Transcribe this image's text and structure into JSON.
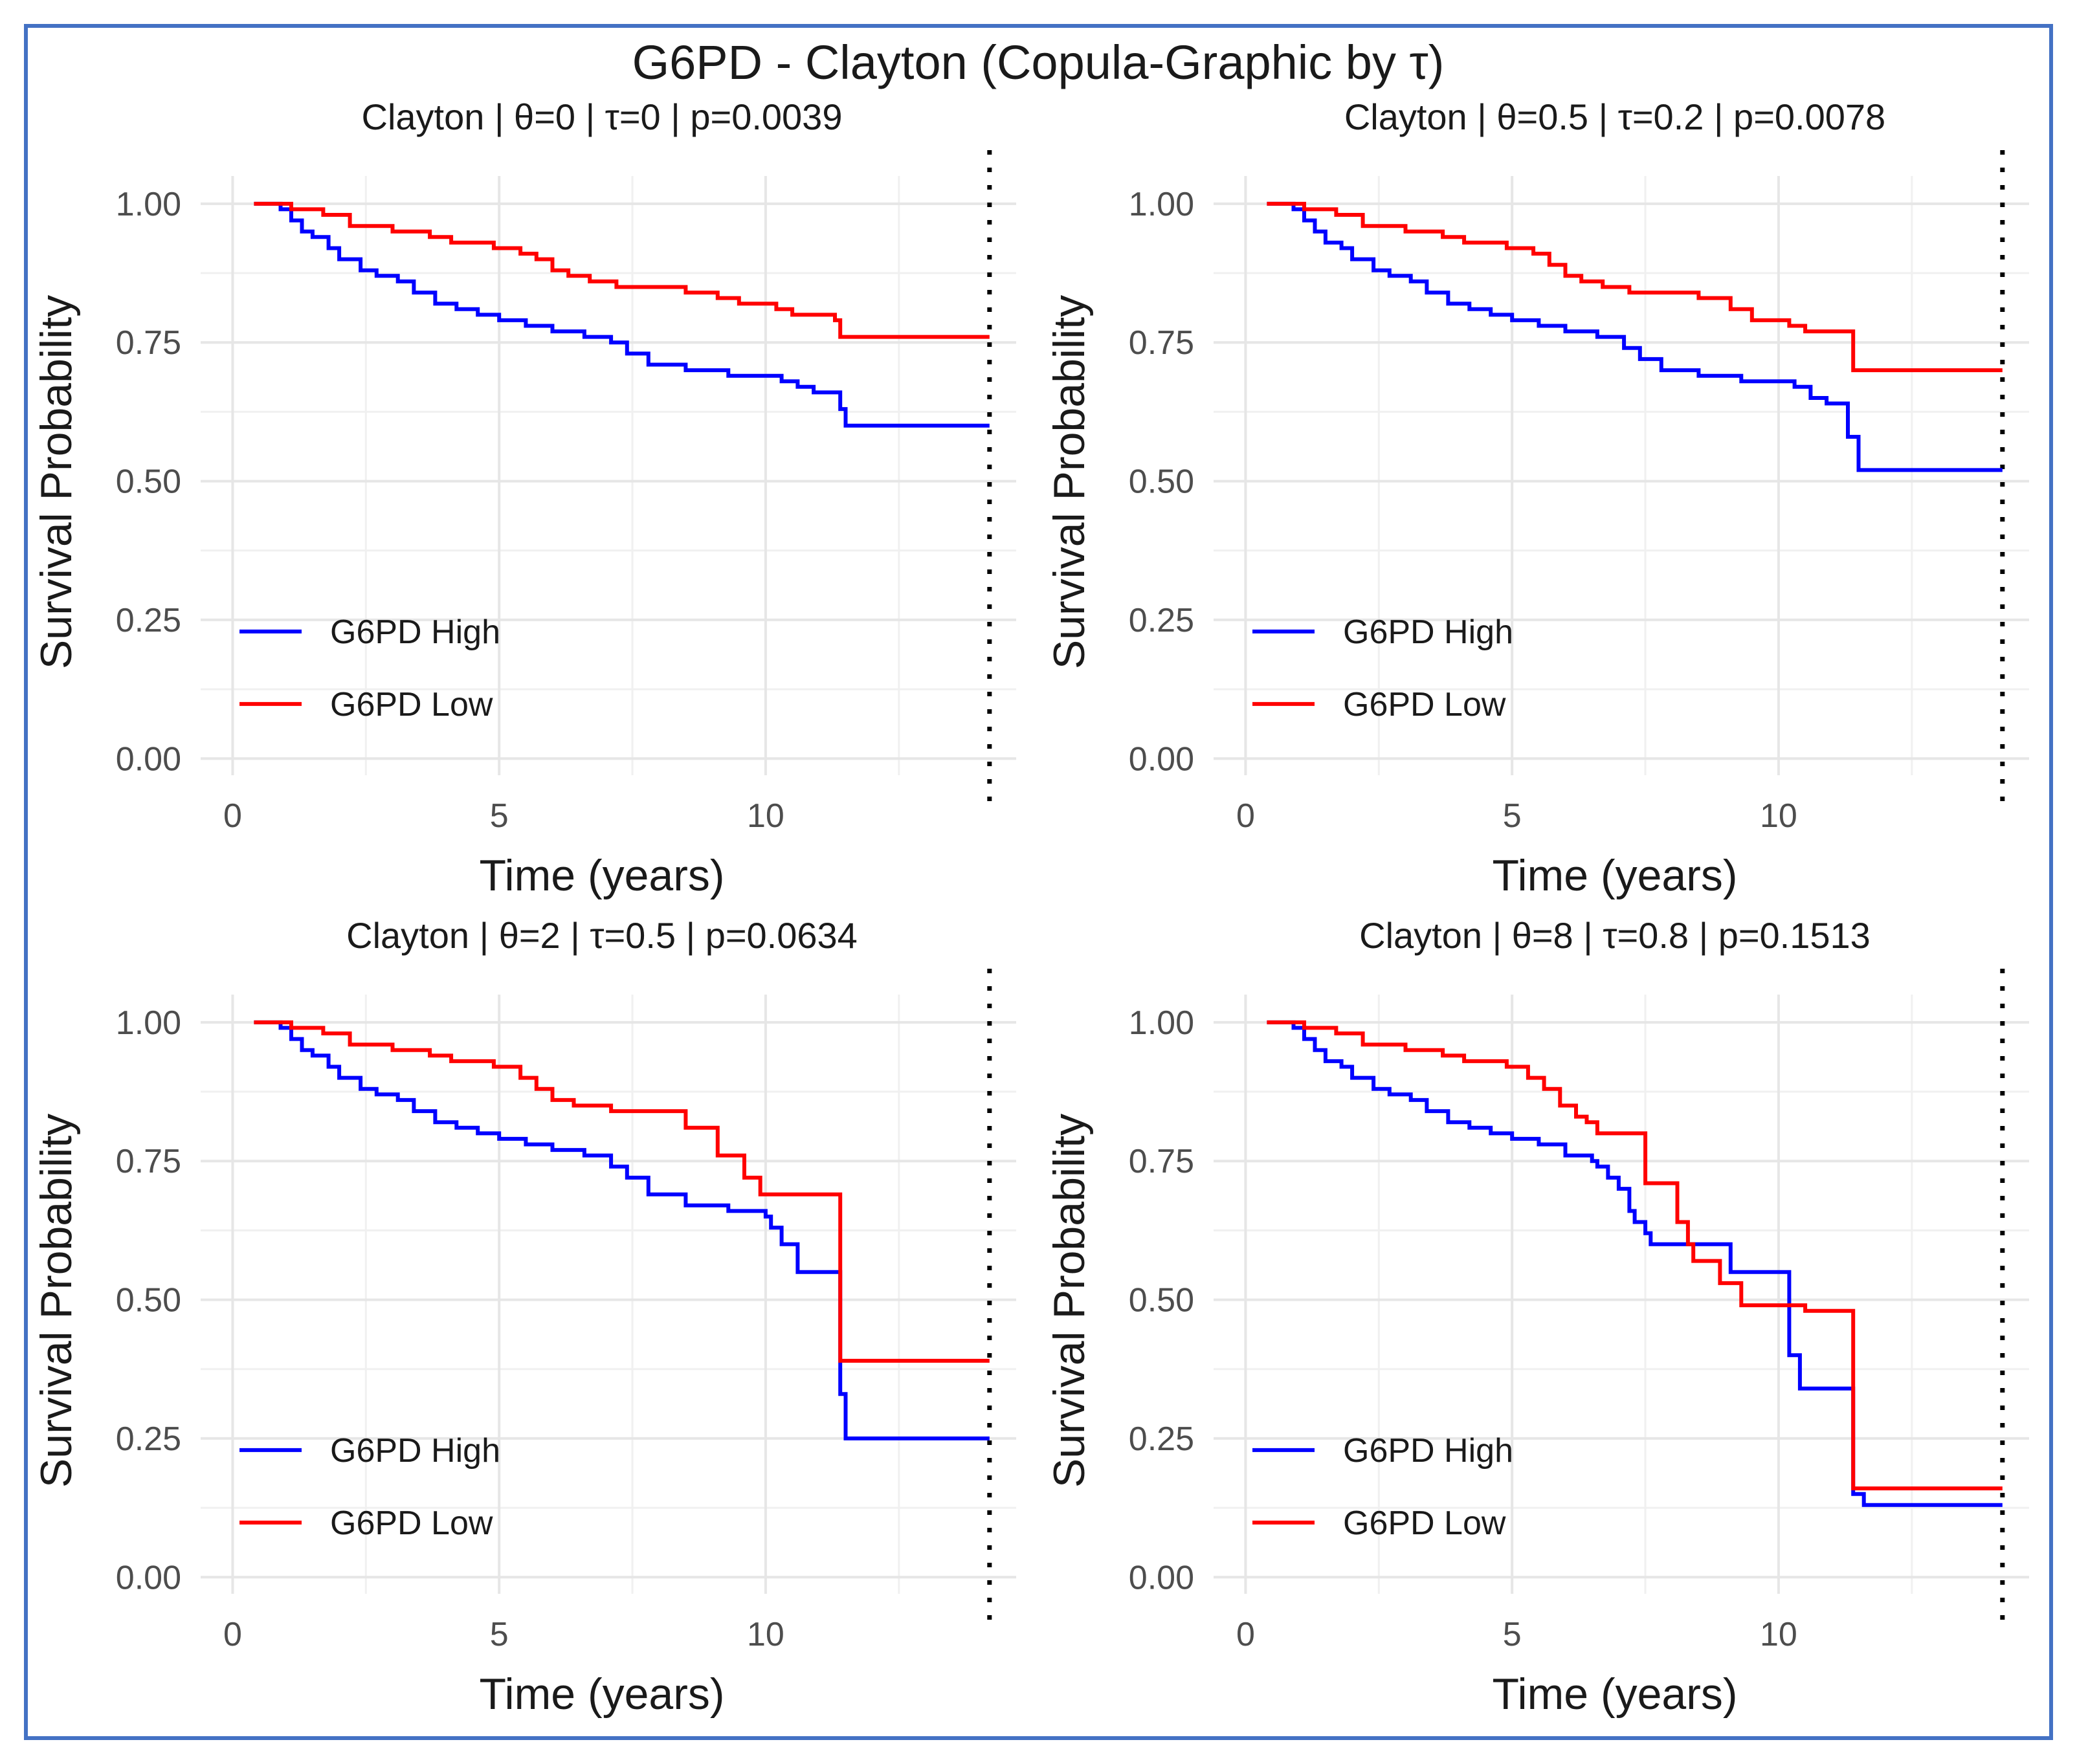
{
  "figure": {
    "title": "G6PD - Clayton (Copula-Graphic by τ)",
    "frame_color": "#4472C4"
  },
  "chart_data": [
    {
      "type": "line",
      "step": true,
      "title": "Clayton | θ=0 | τ=0 | p=0.0039",
      "xlabel": "Time (years)",
      "ylabel": "Survival Probability",
      "xlim": [
        -0.6,
        14.7
      ],
      "ylim": [
        -0.03,
        1.05
      ],
      "xticks": [
        0,
        5,
        10
      ],
      "xtick_labels": [
        "0",
        "5",
        "10"
      ],
      "yticks": [
        0,
        0.25,
        0.5,
        0.75,
        1.0
      ],
      "ytick_labels": [
        "0.00",
        "0.25",
        "0.50",
        "0.75",
        "1.00"
      ],
      "grid": true,
      "legend_position": "bottom-left",
      "vline_x": 14.2,
      "series": [
        {
          "name": "G6PD High",
          "color": "#0000FF",
          "points": [
            [
              0.4,
              1.0
            ],
            [
              0.9,
              0.99
            ],
            [
              1.1,
              0.97
            ],
            [
              1.3,
              0.95
            ],
            [
              1.5,
              0.94
            ],
            [
              1.8,
              0.92
            ],
            [
              2.0,
              0.9
            ],
            [
              2.4,
              0.88
            ],
            [
              2.7,
              0.87
            ],
            [
              3.1,
              0.86
            ],
            [
              3.4,
              0.84
            ],
            [
              3.8,
              0.82
            ],
            [
              4.2,
              0.81
            ],
            [
              4.6,
              0.8
            ],
            [
              5.0,
              0.79
            ],
            [
              5.5,
              0.78
            ],
            [
              6.0,
              0.77
            ],
            [
              6.6,
              0.76
            ],
            [
              7.1,
              0.75
            ],
            [
              7.4,
              0.73
            ],
            [
              7.8,
              0.71
            ],
            [
              8.5,
              0.7
            ],
            [
              9.3,
              0.69
            ],
            [
              10.3,
              0.68
            ],
            [
              10.6,
              0.67
            ],
            [
              10.9,
              0.66
            ],
            [
              11.4,
              0.63
            ],
            [
              11.5,
              0.6
            ],
            [
              14.2,
              0.6
            ]
          ]
        },
        {
          "name": "G6PD Low",
          "color": "#FF0000",
          "points": [
            [
              0.4,
              1.0
            ],
            [
              1.1,
              0.99
            ],
            [
              1.7,
              0.98
            ],
            [
              2.2,
              0.96
            ],
            [
              3.0,
              0.95
            ],
            [
              3.7,
              0.94
            ],
            [
              4.1,
              0.93
            ],
            [
              4.9,
              0.92
            ],
            [
              5.4,
              0.91
            ],
            [
              5.7,
              0.9
            ],
            [
              6.0,
              0.88
            ],
            [
              6.3,
              0.87
            ],
            [
              6.7,
              0.86
            ],
            [
              7.2,
              0.85
            ],
            [
              8.5,
              0.84
            ],
            [
              9.1,
              0.83
            ],
            [
              9.5,
              0.82
            ],
            [
              10.2,
              0.81
            ],
            [
              10.5,
              0.8
            ],
            [
              11.3,
              0.79
            ],
            [
              11.4,
              0.76
            ],
            [
              14.2,
              0.76
            ]
          ]
        }
      ]
    },
    {
      "type": "line",
      "step": true,
      "title": "Clayton | θ=0.5 | τ=0.2 | p=0.0078",
      "xlabel": "Time (years)",
      "ylabel": "Survival Probability",
      "xlim": [
        -0.6,
        14.7
      ],
      "ylim": [
        -0.03,
        1.05
      ],
      "xticks": [
        0,
        5,
        10
      ],
      "xtick_labels": [
        "0",
        "5",
        "10"
      ],
      "yticks": [
        0,
        0.25,
        0.5,
        0.75,
        1.0
      ],
      "ytick_labels": [
        "0.00",
        "0.25",
        "0.50",
        "0.75",
        "1.00"
      ],
      "grid": true,
      "legend_position": "bottom-left",
      "vline_x": 14.2,
      "series": [
        {
          "name": "G6PD High",
          "color": "#0000FF",
          "points": [
            [
              0.4,
              1.0
            ],
            [
              0.9,
              0.99
            ],
            [
              1.1,
              0.97
            ],
            [
              1.3,
              0.95
            ],
            [
              1.5,
              0.93
            ],
            [
              1.8,
              0.92
            ],
            [
              2.0,
              0.9
            ],
            [
              2.4,
              0.88
            ],
            [
              2.7,
              0.87
            ],
            [
              3.1,
              0.86
            ],
            [
              3.4,
              0.84
            ],
            [
              3.8,
              0.82
            ],
            [
              4.2,
              0.81
            ],
            [
              4.6,
              0.8
            ],
            [
              5.0,
              0.79
            ],
            [
              5.5,
              0.78
            ],
            [
              6.0,
              0.77
            ],
            [
              6.6,
              0.76
            ],
            [
              7.1,
              0.74
            ],
            [
              7.4,
              0.72
            ],
            [
              7.8,
              0.7
            ],
            [
              8.5,
              0.69
            ],
            [
              9.3,
              0.68
            ],
            [
              10.3,
              0.67
            ],
            [
              10.6,
              0.65
            ],
            [
              10.9,
              0.64
            ],
            [
              11.1,
              0.64
            ],
            [
              11.3,
              0.58
            ],
            [
              11.5,
              0.52
            ],
            [
              14.2,
              0.52
            ]
          ]
        },
        {
          "name": "G6PD Low",
          "color": "#FF0000",
          "points": [
            [
              0.4,
              1.0
            ],
            [
              1.1,
              0.99
            ],
            [
              1.7,
              0.98
            ],
            [
              2.2,
              0.96
            ],
            [
              3.0,
              0.95
            ],
            [
              3.7,
              0.94
            ],
            [
              4.1,
              0.93
            ],
            [
              4.9,
              0.92
            ],
            [
              5.4,
              0.91
            ],
            [
              5.7,
              0.89
            ],
            [
              6.0,
              0.87
            ],
            [
              6.3,
              0.86
            ],
            [
              6.7,
              0.85
            ],
            [
              7.2,
              0.84
            ],
            [
              8.5,
              0.83
            ],
            [
              9.1,
              0.81
            ],
            [
              9.5,
              0.79
            ],
            [
              10.2,
              0.78
            ],
            [
              10.5,
              0.77
            ],
            [
              11.3,
              0.77
            ],
            [
              11.4,
              0.7
            ],
            [
              14.2,
              0.7
            ]
          ]
        }
      ]
    },
    {
      "type": "line",
      "step": true,
      "title": "Clayton | θ=2 | τ=0.5 | p=0.0634",
      "xlabel": "Time (years)",
      "ylabel": "Survival Probability",
      "xlim": [
        -0.6,
        14.7
      ],
      "ylim": [
        -0.03,
        1.05
      ],
      "xticks": [
        0,
        5,
        10
      ],
      "xtick_labels": [
        "0",
        "5",
        "10"
      ],
      "yticks": [
        0,
        0.25,
        0.5,
        0.75,
        1.0
      ],
      "ytick_labels": [
        "0.00",
        "0.25",
        "0.50",
        "0.75",
        "1.00"
      ],
      "grid": true,
      "legend_position": "bottom-left",
      "vline_x": 14.2,
      "series": [
        {
          "name": "G6PD High",
          "color": "#0000FF",
          "points": [
            [
              0.4,
              1.0
            ],
            [
              0.9,
              0.99
            ],
            [
              1.1,
              0.97
            ],
            [
              1.3,
              0.95
            ],
            [
              1.5,
              0.94
            ],
            [
              1.8,
              0.92
            ],
            [
              2.0,
              0.9
            ],
            [
              2.4,
              0.88
            ],
            [
              2.7,
              0.87
            ],
            [
              3.1,
              0.86
            ],
            [
              3.4,
              0.84
            ],
            [
              3.8,
              0.82
            ],
            [
              4.2,
              0.81
            ],
            [
              4.6,
              0.8
            ],
            [
              5.0,
              0.79
            ],
            [
              5.5,
              0.78
            ],
            [
              6.0,
              0.77
            ],
            [
              6.6,
              0.76
            ],
            [
              7.1,
              0.74
            ],
            [
              7.4,
              0.72
            ],
            [
              7.8,
              0.69
            ],
            [
              8.5,
              0.67
            ],
            [
              9.3,
              0.66
            ],
            [
              10.0,
              0.65
            ],
            [
              10.1,
              0.63
            ],
            [
              10.3,
              0.6
            ],
            [
              10.6,
              0.55
            ],
            [
              11.4,
              0.33
            ],
            [
              11.5,
              0.25
            ],
            [
              14.2,
              0.25
            ]
          ]
        },
        {
          "name": "G6PD Low",
          "color": "#FF0000",
          "points": [
            [
              0.4,
              1.0
            ],
            [
              1.1,
              0.99
            ],
            [
              1.7,
              0.98
            ],
            [
              2.2,
              0.96
            ],
            [
              3.0,
              0.95
            ],
            [
              3.7,
              0.94
            ],
            [
              4.1,
              0.93
            ],
            [
              4.9,
              0.92
            ],
            [
              5.4,
              0.9
            ],
            [
              5.7,
              0.88
            ],
            [
              6.0,
              0.86
            ],
            [
              6.4,
              0.85
            ],
            [
              7.1,
              0.84
            ],
            [
              8.5,
              0.81
            ],
            [
              9.1,
              0.76
            ],
            [
              9.6,
              0.72
            ],
            [
              9.9,
              0.69
            ],
            [
              10.8,
              0.69
            ],
            [
              11.4,
              0.39
            ],
            [
              14.2,
              0.39
            ]
          ]
        }
      ]
    },
    {
      "type": "line",
      "step": true,
      "title": "Clayton | θ=8 | τ=0.8 | p=0.1513",
      "xlabel": "Time (years)",
      "ylabel": "Survival Probability",
      "xlim": [
        -0.6,
        14.7
      ],
      "ylim": [
        -0.03,
        1.05
      ],
      "xticks": [
        0,
        5,
        10
      ],
      "xtick_labels": [
        "0",
        "5",
        "10"
      ],
      "yticks": [
        0,
        0.25,
        0.5,
        0.75,
        1.0
      ],
      "ytick_labels": [
        "0.00",
        "0.25",
        "0.50",
        "0.75",
        "1.00"
      ],
      "grid": true,
      "legend_position": "bottom-left",
      "vline_x": 14.2,
      "series": [
        {
          "name": "G6PD High",
          "color": "#0000FF",
          "points": [
            [
              0.4,
              1.0
            ],
            [
              0.9,
              0.99
            ],
            [
              1.1,
              0.97
            ],
            [
              1.3,
              0.95
            ],
            [
              1.5,
              0.93
            ],
            [
              1.8,
              0.92
            ],
            [
              2.0,
              0.9
            ],
            [
              2.4,
              0.88
            ],
            [
              2.7,
              0.87
            ],
            [
              3.1,
              0.86
            ],
            [
              3.4,
              0.84
            ],
            [
              3.8,
              0.82
            ],
            [
              4.2,
              0.81
            ],
            [
              4.6,
              0.8
            ],
            [
              5.0,
              0.79
            ],
            [
              5.5,
              0.78
            ],
            [
              6.0,
              0.76
            ],
            [
              6.5,
              0.75
            ],
            [
              6.6,
              0.74
            ],
            [
              6.8,
              0.72
            ],
            [
              7.0,
              0.7
            ],
            [
              7.2,
              0.66
            ],
            [
              7.3,
              0.64
            ],
            [
              7.5,
              0.62
            ],
            [
              7.6,
              0.6
            ],
            [
              9.1,
              0.55
            ],
            [
              10.0,
              0.55
            ],
            [
              10.2,
              0.4
            ],
            [
              10.4,
              0.34
            ],
            [
              11.3,
              0.34
            ],
            [
              11.4,
              0.15
            ],
            [
              11.6,
              0.13
            ],
            [
              14.2,
              0.13
            ]
          ]
        },
        {
          "name": "G6PD Low",
          "color": "#FF0000",
          "points": [
            [
              0.4,
              1.0
            ],
            [
              1.1,
              0.99
            ],
            [
              1.7,
              0.98
            ],
            [
              2.2,
              0.96
            ],
            [
              3.0,
              0.95
            ],
            [
              3.7,
              0.94
            ],
            [
              4.1,
              0.93
            ],
            [
              4.9,
              0.92
            ],
            [
              5.3,
              0.9
            ],
            [
              5.6,
              0.88
            ],
            [
              5.9,
              0.85
            ],
            [
              6.2,
              0.83
            ],
            [
              6.4,
              0.82
            ],
            [
              6.6,
              0.8
            ],
            [
              7.5,
              0.71
            ],
            [
              8.1,
              0.64
            ],
            [
              8.3,
              0.6
            ],
            [
              8.4,
              0.57
            ],
            [
              8.9,
              0.53
            ],
            [
              9.3,
              0.49
            ],
            [
              10.5,
              0.48
            ],
            [
              11.3,
              0.48
            ],
            [
              11.4,
              0.16
            ],
            [
              14.2,
              0.16
            ]
          ]
        }
      ]
    }
  ]
}
